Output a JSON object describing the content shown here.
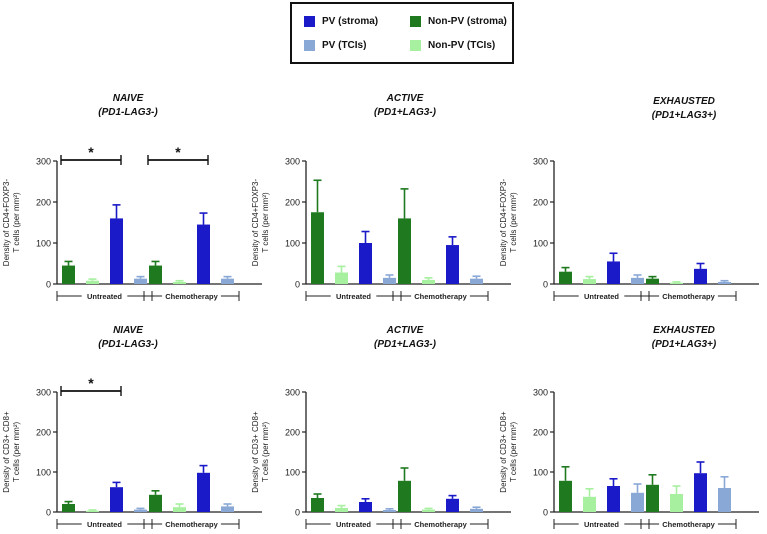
{
  "legend": {
    "items": [
      {
        "label": "PV (stroma)",
        "color": "#1a1ac8"
      },
      {
        "label": "Non-PV (stroma)",
        "color": "#1f7a1f"
      },
      {
        "label": "PV (TCIs)",
        "color": "#8aa8d6"
      },
      {
        "label": "Non-PV (TCIs)",
        "color": "#a6f0a0"
      }
    ]
  },
  "groups": [
    "Untreated",
    "Chemotherapy"
  ],
  "chart_data": [
    {
      "type": "bar",
      "title": "NAIVE",
      "subtitle": "(PD1-LAG3-)",
      "ylabel1": "Density of CD4+FOXP3-",
      "ylabel2": "T cells (per mm²)",
      "ylim": [
        0,
        300
      ],
      "yticks": [
        "0",
        "100",
        "200",
        "300"
      ],
      "series": [
        {
          "name": "Non-PV (stroma)",
          "color": "#1f7a1f",
          "values": [
            45,
            45
          ],
          "errors": [
            10,
            10
          ]
        },
        {
          "name": "Non-PV (TCIs)",
          "color": "#a6f0a0",
          "values": [
            8,
            5
          ],
          "errors": [
            4,
            3
          ]
        },
        {
          "name": "PV (stroma)",
          "color": "#1a1ac8",
          "values": [
            160,
            145
          ],
          "errors": [
            33,
            28
          ]
        },
        {
          "name": "PV (TCIs)",
          "color": "#8aa8d6",
          "values": [
            13,
            13
          ],
          "errors": [
            5,
            5
          ]
        }
      ],
      "significance": [
        {
          "group": 0,
          "from": 0,
          "to": 2,
          "label": "*"
        },
        {
          "group": 1,
          "from": 0,
          "to": 2,
          "label": "*"
        }
      ]
    },
    {
      "type": "bar",
      "title": "ACTIVE",
      "subtitle": "(PD1+LAG3-)",
      "ylabel1": "Density of CD4+FOXP3-",
      "ylabel2": "T cells (per mm²)",
      "ylim": [
        0,
        300
      ],
      "yticks": [
        "0",
        "100",
        "200",
        "300"
      ],
      "series": [
        {
          "name": "Non-PV (stroma)",
          "color": "#1f7a1f",
          "values": [
            175,
            160
          ],
          "errors": [
            78,
            72
          ]
        },
        {
          "name": "Non-PV (TCIs)",
          "color": "#a6f0a0",
          "values": [
            28,
            10
          ],
          "errors": [
            15,
            5
          ]
        },
        {
          "name": "PV (stroma)",
          "color": "#1a1ac8",
          "values": [
            100,
            95
          ],
          "errors": [
            28,
            20
          ]
        },
        {
          "name": "PV (TCIs)",
          "color": "#8aa8d6",
          "values": [
            15,
            13
          ],
          "errors": [
            7,
            6
          ]
        }
      ],
      "significance": []
    },
    {
      "type": "bar",
      "title": "EXHAUSTED",
      "subtitle": "(PD1+LAG3+)",
      "ylabel1": "Density of CD4+FOXP3-",
      "ylabel2": "T cells (per mm²)",
      "ylim": [
        0,
        300
      ],
      "yticks": [
        "0",
        "100",
        "200",
        "300"
      ],
      "series": [
        {
          "name": "Non-PV (stroma)",
          "color": "#1f7a1f",
          "values": [
            30,
            13
          ],
          "errors": [
            10,
            5
          ]
        },
        {
          "name": "Non-PV (TCIs)",
          "color": "#a6f0a0",
          "values": [
            12,
            3
          ],
          "errors": [
            6,
            2
          ]
        },
        {
          "name": "PV (stroma)",
          "color": "#1a1ac8",
          "values": [
            55,
            37
          ],
          "errors": [
            20,
            13
          ]
        },
        {
          "name": "PV (TCIs)",
          "color": "#8aa8d6",
          "values": [
            15,
            5
          ],
          "errors": [
            7,
            3
          ]
        }
      ],
      "significance": []
    },
    {
      "type": "bar",
      "title": "NIAVE",
      "subtitle": "(PD1-LAG3-)",
      "ylabel1": "Density of CD3+ CD8+",
      "ylabel2": "T cells (per mm²)",
      "ylim": [
        0,
        300
      ],
      "yticks": [
        "0",
        "100",
        "200",
        "300"
      ],
      "series": [
        {
          "name": "Non-PV (stroma)",
          "color": "#1f7a1f",
          "values": [
            20,
            43
          ],
          "errors": [
            6,
            10
          ]
        },
        {
          "name": "Non-PV (TCIs)",
          "color": "#a6f0a0",
          "values": [
            3,
            12
          ],
          "errors": [
            2,
            8
          ]
        },
        {
          "name": "PV (stroma)",
          "color": "#1a1ac8",
          "values": [
            62,
            98
          ],
          "errors": [
            12,
            18
          ]
        },
        {
          "name": "PV (TCIs)",
          "color": "#8aa8d6",
          "values": [
            6,
            14
          ],
          "errors": [
            3,
            6
          ]
        }
      ],
      "significance": [
        {
          "group": 0,
          "from": 0,
          "to": 2,
          "label": "*"
        }
      ]
    },
    {
      "type": "bar",
      "title": "ACTIVE",
      "subtitle": "(PD1+LAG3-)",
      "ylabel1": "Density of CD3+ CD8+",
      "ylabel2": "T cells (per mm²)",
      "ylim": [
        0,
        300
      ],
      "yticks": [
        "0",
        "100",
        "200",
        "300"
      ],
      "series": [
        {
          "name": "Non-PV (stroma)",
          "color": "#1f7a1f",
          "values": [
            35,
            78
          ],
          "errors": [
            10,
            32
          ]
        },
        {
          "name": "Non-PV (TCIs)",
          "color": "#a6f0a0",
          "values": [
            10,
            6
          ],
          "errors": [
            6,
            3
          ]
        },
        {
          "name": "PV (stroma)",
          "color": "#1a1ac8",
          "values": [
            25,
            33
          ],
          "errors": [
            8,
            8
          ]
        },
        {
          "name": "PV (TCIs)",
          "color": "#8aa8d6",
          "values": [
            5,
            8
          ],
          "errors": [
            3,
            4
          ]
        }
      ],
      "significance": []
    },
    {
      "type": "bar",
      "title": "EXHAUSTED",
      "subtitle": "(PD1+LAG3+)",
      "ylabel1": "Density of CD3+ CD8+",
      "ylabel2": "T cells (per mm²)",
      "ylim": [
        0,
        300
      ],
      "yticks": [
        "0",
        "100",
        "200",
        "300"
      ],
      "series": [
        {
          "name": "Non-PV (stroma)",
          "color": "#1f7a1f",
          "values": [
            78,
            68
          ],
          "errors": [
            35,
            25
          ]
        },
        {
          "name": "Non-PV (TCIs)",
          "color": "#a6f0a0",
          "values": [
            38,
            45
          ],
          "errors": [
            20,
            20
          ]
        },
        {
          "name": "PV (stroma)",
          "color": "#1a1ac8",
          "values": [
            65,
            97
          ],
          "errors": [
            18,
            28
          ]
        },
        {
          "name": "PV (TCIs)",
          "color": "#8aa8d6",
          "values": [
            48,
            60
          ],
          "errors": [
            22,
            28
          ]
        }
      ],
      "significance": []
    }
  ]
}
